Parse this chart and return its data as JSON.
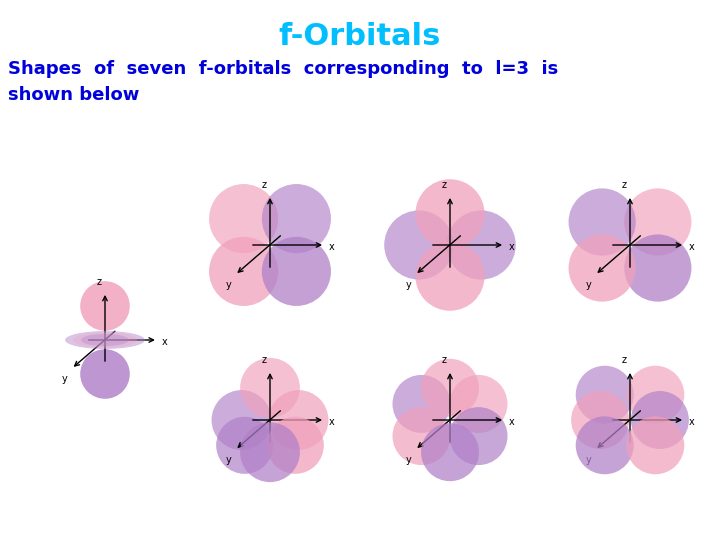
{
  "title": "f-Orbitals",
  "title_color": "#00BFFF",
  "title_fontsize": 22,
  "subtitle_line1": "Shapes  of  seven  f-orbitals  corresponding  to  l=3  is",
  "subtitle_line2": "shown below",
  "subtitle_color": "#0000DD",
  "subtitle_fontsize": 13,
  "background_color": "#ffffff",
  "pink": "#F0A0BB",
  "purple": "#B080C8",
  "fig_width": 7.2,
  "fig_height": 5.4,
  "dpi": 100
}
